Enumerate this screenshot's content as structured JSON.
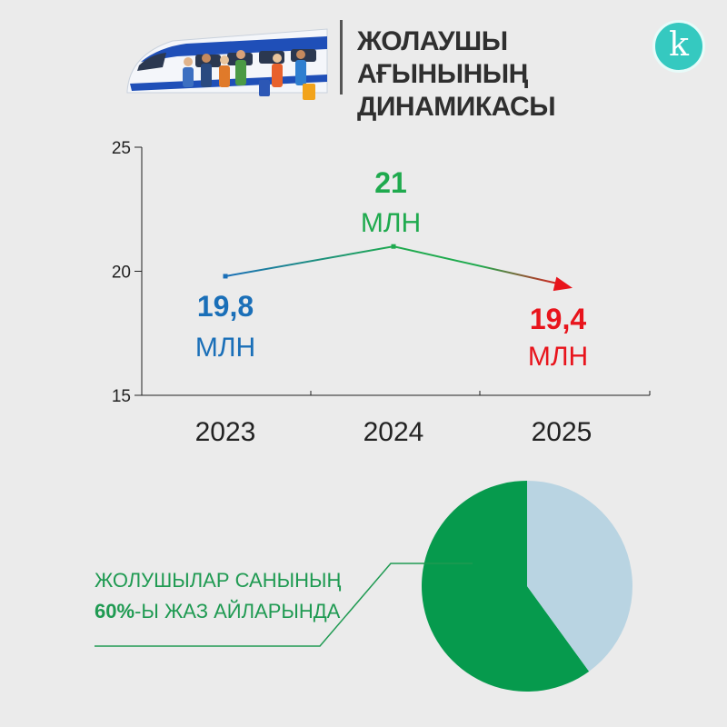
{
  "header": {
    "title_line1": "ЖОЛАУШЫ",
    "title_line2": "АҒЫНЫНЫҢ ДИНАМИКАСЫ",
    "logo_letter": "k"
  },
  "colors": {
    "blue": "#1a6fb8",
    "green": "#1faa4e",
    "red": "#e8141c",
    "pie_green": "#069a4d",
    "pie_light": "#b9d4e2",
    "accent": "#35c9c0"
  },
  "chart_data": [
    {
      "type": "line",
      "categories": [
        "2023",
        "2024",
        "2025"
      ],
      "values": [
        19.8,
        21,
        19.4
      ],
      "value_labels": [
        "19,8",
        "21",
        "19,4"
      ],
      "unit_labels": [
        "МЛН",
        "МЛН",
        "МЛН"
      ],
      "yticks": [
        "25",
        "20",
        "15"
      ],
      "ylim": [
        15,
        25
      ]
    },
    {
      "type": "pie",
      "values": [
        60,
        40
      ],
      "caption_line1": "ЖОЛУШЫЛАР САНЫНЫҢ",
      "caption_highlight": "60%",
      "caption_rest": "-Ы ЖАЗ АЙЛАРЫНДА"
    }
  ]
}
